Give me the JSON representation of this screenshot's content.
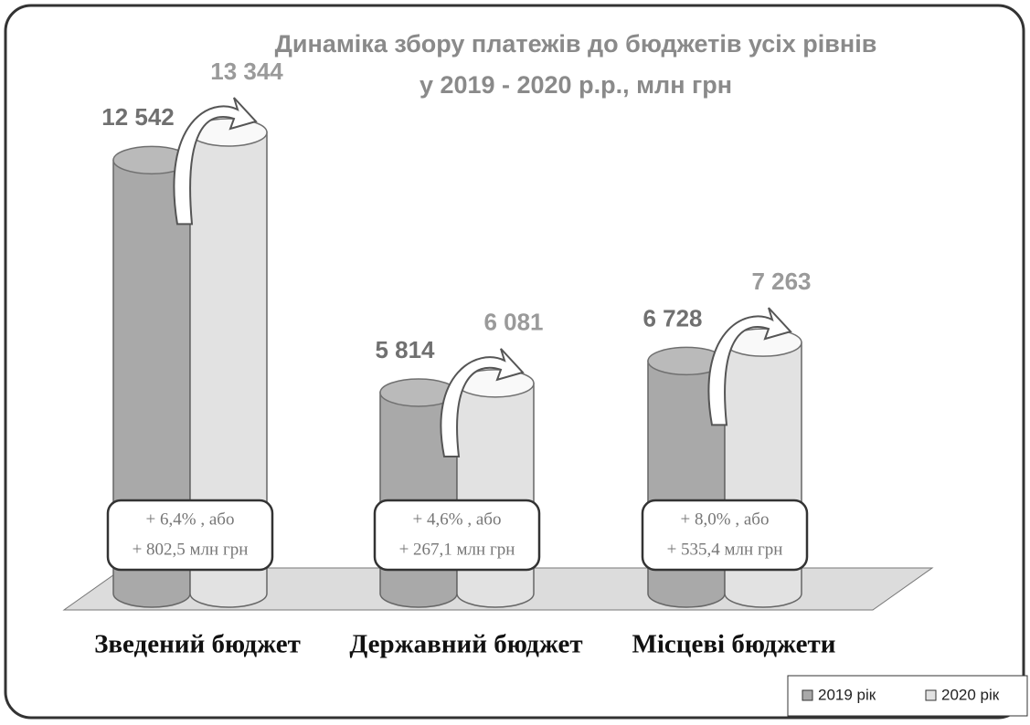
{
  "chart_data": {
    "type": "bar",
    "title": "Динаміка збору платежів до бюджетів усіх рівнів",
    "subtitle": "у 2019 - 2020 р.р.,  млн грн",
    "categories": [
      "Зведений бюджет",
      "Державний бюджет",
      "Місцеві бюджети"
    ],
    "series": [
      {
        "name": "2019 рік",
        "color": "#a9a9a9",
        "values": [
          12542,
          5814,
          6728
        ],
        "value_labels": [
          "12 542",
          "5 814",
          "6 728"
        ]
      },
      {
        "name": "2020 рік",
        "color": "#e2e2e2",
        "values": [
          13344,
          6081,
          7263
        ],
        "value_labels": [
          "13 344",
          "6 081",
          "7 263"
        ]
      }
    ],
    "annotations": [
      [
        "+ 6,4% , або",
        "+ 802,5 млн грн"
      ],
      [
        "+ 4,6% , або",
        "+ 267,1 млн грн"
      ],
      [
        "+ 8,0% , або",
        "+ 535,4 млн грн"
      ]
    ]
  }
}
